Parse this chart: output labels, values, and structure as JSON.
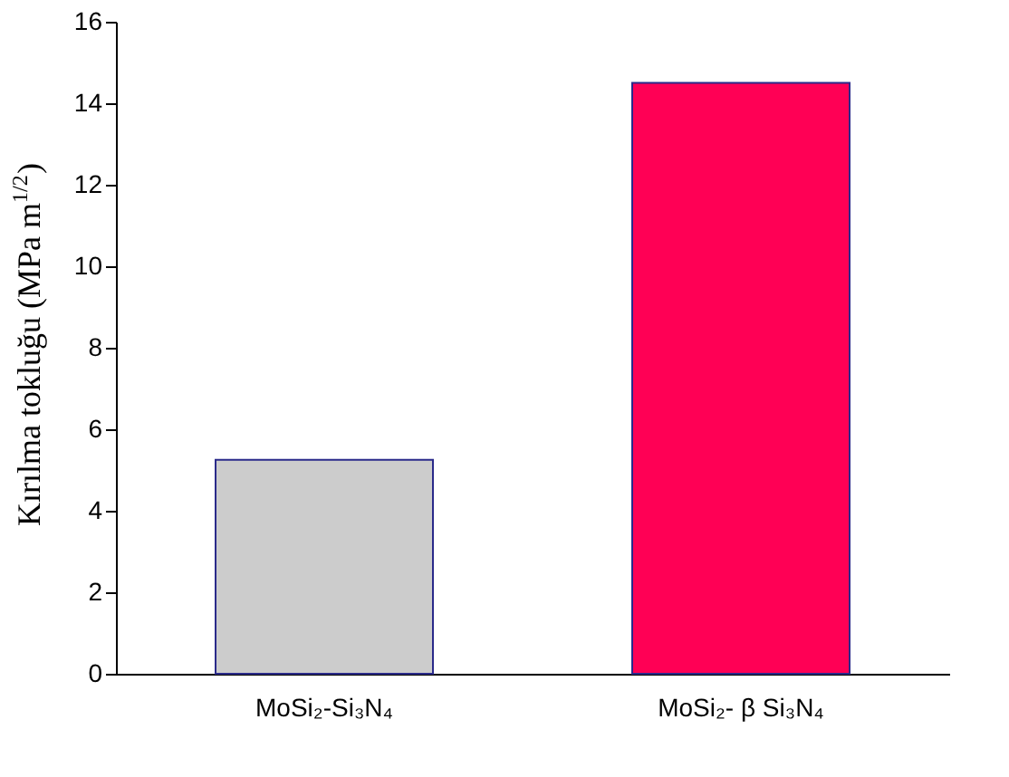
{
  "chart_data": {
    "type": "bar",
    "ylabel": "Kırılma tokluğu (MPa m$^{1/2}$)",
    "categories": [
      "MoSi₂-Si₃N₄",
      "MoSi₂- β Si₃N₄"
    ],
    "values": [
      5.25,
      14.5
    ],
    "colors": [
      "#cccccc",
      "#ff0055"
    ],
    "ylim": [
      0,
      16
    ],
    "yticks": [
      0,
      2,
      4,
      6,
      8,
      10,
      12,
      14,
      16
    ],
    "grid": false
  }
}
